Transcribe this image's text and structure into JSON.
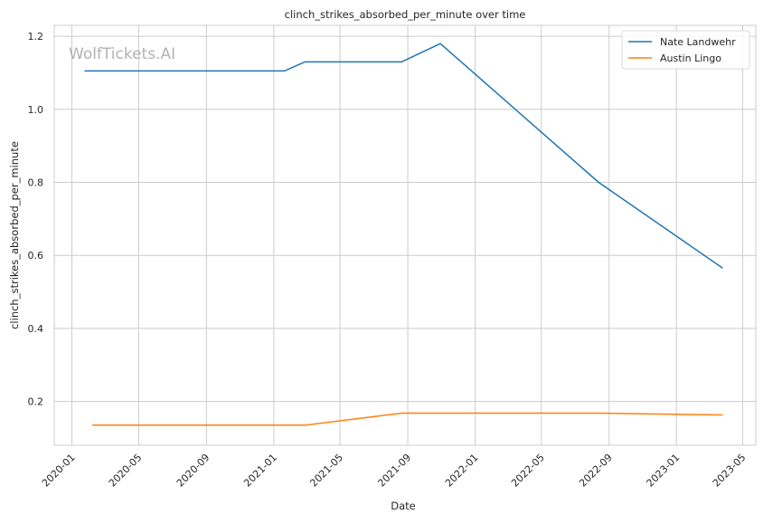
{
  "chart_data": {
    "type": "line",
    "title": "clinch_strikes_absorbed_per_minute over time",
    "xlabel": "Date",
    "ylabel": "clinch_strikes_absorbed_per_minute",
    "watermark": "WolfTickets.AI",
    "x_ticks": [
      "2020-01",
      "2020-05",
      "2020-09",
      "2021-01",
      "2021-05",
      "2021-09",
      "2022-01",
      "2022-05",
      "2022-09",
      "2023-01",
      "2023-05"
    ],
    "y_ticks": [
      "0.2",
      "0.4",
      "0.6",
      "0.8",
      "1.0",
      "1.2"
    ],
    "xlim": [
      "2019-11-30",
      "2023-05-25"
    ],
    "ylim": [
      0.08,
      1.23
    ],
    "grid": true,
    "legend_position": "top-right",
    "series": [
      {
        "name": "Nate Landwehr",
        "color": "#1f77b4",
        "x": [
          "2020-01-25",
          "2021-01-20",
          "2021-02-27",
          "2021-08-21",
          "2021-10-30",
          "2022-08-13",
          "2023-03-25"
        ],
        "y": [
          1.105,
          1.105,
          1.13,
          1.13,
          1.18,
          0.8,
          0.566
        ]
      },
      {
        "name": "Austin Lingo",
        "color": "#ff7f0e",
        "x": [
          "2020-02-08",
          "2021-02-27",
          "2021-08-21",
          "2022-08-13",
          "2023-03-25"
        ],
        "y": [
          0.135,
          0.135,
          0.168,
          0.168,
          0.163
        ]
      }
    ]
  }
}
